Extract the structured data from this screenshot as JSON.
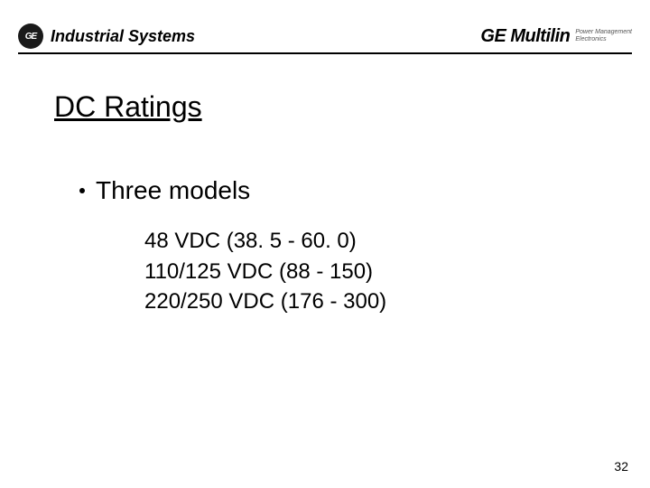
{
  "header": {
    "logo_text": "GE",
    "division": "Industrial Systems",
    "brand_main": "GE Multilin",
    "brand_sub1": "Power Management",
    "brand_sub2": "Electronics"
  },
  "title": "DC Ratings",
  "bullet": {
    "text": "Three models"
  },
  "models": [
    "48 VDC  (38. 5 - 60. 0)",
    "110/125 VDC  (88 - 150)",
    "220/250 VDC  (176 - 300)"
  ],
  "page_number": "32",
  "colors": {
    "background": "#ffffff",
    "text": "#000000",
    "rule": "#000000",
    "logo_bg": "#1a1a1a",
    "brand_sub": "#555555"
  },
  "typography": {
    "title_fontsize": 32,
    "bullet_fontsize": 28,
    "models_fontsize": 24,
    "header_fontsize": 18,
    "brand_fontsize": 20,
    "page_number_fontsize": 14
  }
}
